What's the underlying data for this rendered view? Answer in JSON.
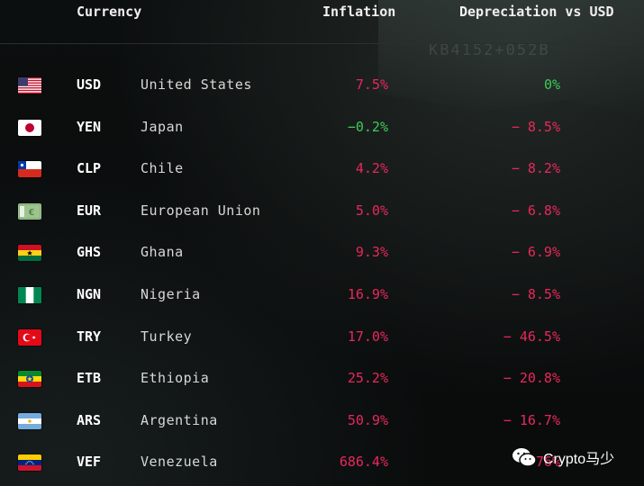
{
  "header": {
    "currency": "Currency",
    "inflation": "Inflation",
    "depreciation": "Depreciation vs USD"
  },
  "background_text": "KB4152+052B",
  "watermark": "Crypto马少",
  "colors": {
    "negative": "#e8285c",
    "positive": "#3fcb57",
    "background": "#0b0d0d"
  },
  "chart_data": {
    "type": "table",
    "columns": [
      "Currency",
      "Inflation",
      "Depreciation vs USD"
    ],
    "rows": [
      {
        "flag": "us-flag-icon",
        "code": "USD",
        "country": "United States",
        "inflation": "7.5%",
        "inflation_value": 7.5,
        "inflation_color": "negative",
        "depreciation": "0%",
        "depreciation_value": 0,
        "depreciation_color": "positive"
      },
      {
        "flag": "japan-flag-icon",
        "code": "YEN",
        "country": "Japan",
        "inflation": "−0.2%",
        "inflation_value": -0.2,
        "inflation_color": "positive",
        "depreciation": "− 8.5%",
        "depreciation_value": -8.5,
        "depreciation_color": "negative"
      },
      {
        "flag": "chile-flag-icon",
        "code": "CLP",
        "country": "Chile",
        "inflation": "4.2%",
        "inflation_value": 4.2,
        "inflation_color": "negative",
        "depreciation": "− 8.2%",
        "depreciation_value": -8.2,
        "depreciation_color": "negative"
      },
      {
        "flag": "euro-banknote-icon",
        "code": "EUR",
        "country": "European Union",
        "inflation": "5.0%",
        "inflation_value": 5.0,
        "inflation_color": "negative",
        "depreciation": "− 6.8%",
        "depreciation_value": -6.8,
        "depreciation_color": "negative"
      },
      {
        "flag": "ghana-flag-icon",
        "code": "GHS",
        "country": "Ghana",
        "inflation": "9.3%",
        "inflation_value": 9.3,
        "inflation_color": "negative",
        "depreciation": "− 6.9%",
        "depreciation_value": -6.9,
        "depreciation_color": "negative"
      },
      {
        "flag": "nigeria-flag-icon",
        "code": "NGN",
        "country": "Nigeria",
        "inflation": "16.9%",
        "inflation_value": 16.9,
        "inflation_color": "negative",
        "depreciation": "− 8.5%",
        "depreciation_value": -8.5,
        "depreciation_color": "negative"
      },
      {
        "flag": "turkey-flag-icon",
        "code": "TRY",
        "country": "Turkey",
        "inflation": "17.0%",
        "inflation_value": 17.0,
        "inflation_color": "negative",
        "depreciation": "− 46.5%",
        "depreciation_value": -46.5,
        "depreciation_color": "negative"
      },
      {
        "flag": "ethiopia-flag-icon",
        "code": "ETB",
        "country": "Ethiopia",
        "inflation": "25.2%",
        "inflation_value": 25.2,
        "inflation_color": "negative",
        "depreciation": "− 20.8%",
        "depreciation_value": -20.8,
        "depreciation_color": "negative"
      },
      {
        "flag": "argentina-flag-icon",
        "code": "ARS",
        "country": "Argentina",
        "inflation": "50.9%",
        "inflation_value": 50.9,
        "inflation_color": "negative",
        "depreciation": "− 16.7%",
        "depreciation_value": -16.7,
        "depreciation_color": "negative"
      },
      {
        "flag": "venezuela-flag-icon",
        "code": "VEF",
        "country": "Venezuela",
        "inflation": "686.4%",
        "inflation_value": 686.4,
        "inflation_color": "negative",
        "depreciation": "− 76%",
        "depreciation_value": -76,
        "depreciation_color": "negative"
      }
    ]
  }
}
